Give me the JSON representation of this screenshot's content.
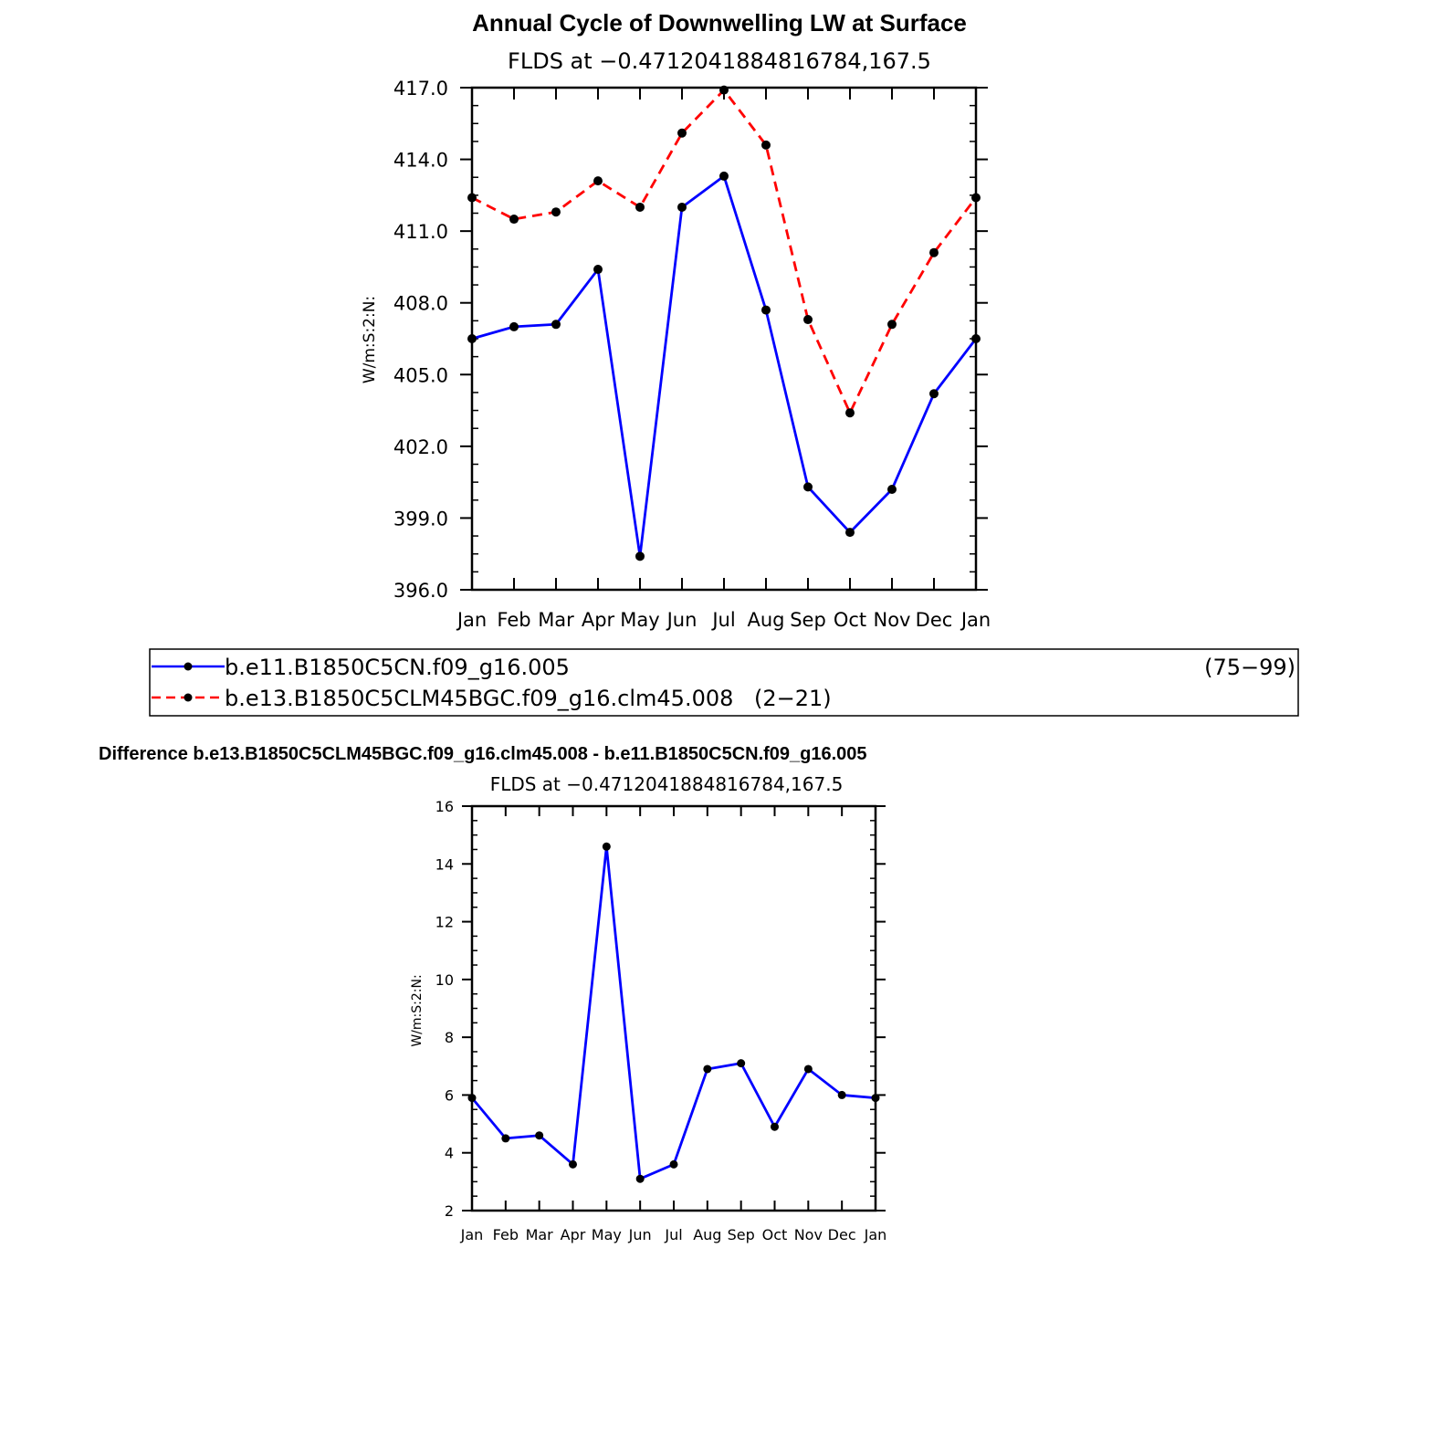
{
  "chart_data": [
    {
      "type": "line",
      "title": "Annual Cycle of Downwelling LW at Surface",
      "subtitle": "FLDS at −0.4712041884816784,167.5",
      "ylabel": "W/m:S:2:N:",
      "ylim": [
        396.0,
        417.0
      ],
      "yticks": [
        "396.0",
        "399.0",
        "402.0",
        "405.0",
        "408.0",
        "411.0",
        "414.0",
        "417.0"
      ],
      "categories": [
        "Jan",
        "Feb",
        "Mar",
        "Apr",
        "May",
        "Jun",
        "Jul",
        "Aug",
        "Sep",
        "Oct",
        "Nov",
        "Dec",
        "Jan"
      ],
      "series": [
        {
          "name": "b.e11.B1850C5CN.f09_g16.005",
          "years": "(75−99)",
          "color": "#0000ff",
          "dash": "solid",
          "values": [
            406.5,
            407.0,
            407.1,
            409.4,
            397.4,
            412.0,
            413.3,
            407.7,
            400.3,
            398.4,
            400.2,
            404.2,
            406.5
          ]
        },
        {
          "name": "b.e13.B1850C5CLM45BGC.f09_g16.clm45.008",
          "years": "(2−21)",
          "color": "#ff0000",
          "dash": "dashed",
          "values": [
            412.4,
            411.5,
            411.8,
            413.1,
            412.0,
            415.1,
            416.9,
            414.6,
            407.3,
            403.4,
            407.1,
            410.1,
            412.4
          ]
        }
      ]
    },
    {
      "type": "line",
      "title": "Difference b.e13.B1850C5CLM45BGC.f09_g16.clm45.008 - b.e11.B1850C5CN.f09_g16.005",
      "subtitle": "FLDS at −0.4712041884816784,167.5",
      "ylabel": "W/m:S:2:N:",
      "ylim": [
        2,
        16
      ],
      "yticks": [
        "2",
        "4",
        "6",
        "8",
        "10",
        "12",
        "14",
        "16"
      ],
      "categories": [
        "Jan",
        "Feb",
        "Mar",
        "Apr",
        "May",
        "Jun",
        "Jul",
        "Aug",
        "Sep",
        "Oct",
        "Nov",
        "Dec",
        "Jan"
      ],
      "series": [
        {
          "color": "#0000ff",
          "dash": "solid",
          "values": [
            5.9,
            4.5,
            4.6,
            3.6,
            14.6,
            3.1,
            3.6,
            6.9,
            7.1,
            4.9,
            6.9,
            6.0,
            5.9
          ]
        }
      ]
    }
  ]
}
